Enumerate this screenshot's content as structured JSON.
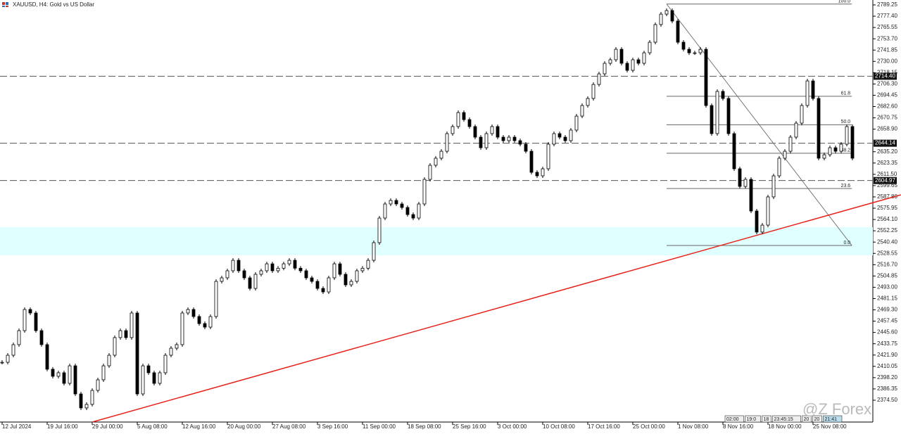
{
  "chart_data": {
    "type": "candlestick",
    "title": "XAUUSD, H4:  Gold vs US Dollar",
    "watermark": "@Z Forex",
    "timers": [
      "02:00",
      "19:0",
      "18",
      "23:45:15",
      "20",
      "20",
      "21:41"
    ],
    "categories": [
      "12 Jul 2024",
      null,
      null,
      null,
      null,
      null,
      null,
      null,
      "19 Jul 16:00",
      null,
      null,
      null,
      null,
      null,
      null,
      null,
      "29 Jul 00:00",
      null,
      null,
      null,
      null,
      null,
      null,
      null,
      "5 Aug 08:00",
      null,
      null,
      null,
      null,
      null,
      null,
      null,
      "12 Aug 16:00",
      null,
      null,
      null,
      null,
      null,
      null,
      null,
      "20 Aug 00:00",
      null,
      null,
      null,
      null,
      null,
      null,
      null,
      "27 Aug 08:00",
      null,
      null,
      null,
      null,
      null,
      null,
      null,
      "3 Sep 16:00",
      null,
      null,
      null,
      null,
      null,
      null,
      null,
      "11 Sep 00:00",
      null,
      null,
      null,
      null,
      null,
      null,
      null,
      "18 Sep 08:00",
      null,
      null,
      null,
      null,
      null,
      null,
      null,
      "25 Sep 16:00",
      null,
      null,
      null,
      null,
      null,
      null,
      null,
      "3 Oct 00:00",
      null,
      null,
      null,
      null,
      null,
      null,
      null,
      "10 Oct 08:00",
      null,
      null,
      null,
      null,
      null,
      null,
      null,
      "17 Oct 16:00",
      null,
      null,
      null,
      null,
      null,
      null,
      null,
      "25 Oct 00:00",
      null,
      null,
      null,
      null,
      null,
      null,
      null,
      "1 Nov 08:00",
      null,
      null,
      null,
      null,
      null,
      null,
      null,
      "8 Nov 16:00",
      null,
      null,
      null,
      null,
      null,
      null,
      null,
      "18 Nov 00:00",
      null,
      null,
      null,
      null,
      null,
      null,
      null,
      "25 Nov 08:00",
      null,
      null,
      null,
      null,
      null,
      null,
      null
    ],
    "close": [
      2414.3,
      2421.7,
      2432.8,
      2447.5,
      2469.7,
      2466.0,
      2447.5,
      2432.8,
      2407.0,
      2399.6,
      2403.3,
      2392.2,
      2410.6,
      2381.1,
      2366.4,
      2370.1,
      2384.8,
      2395.9,
      2410.6,
      2421.7,
      2440.2,
      2447.5,
      2440.2,
      2466.0,
      2381.1,
      2410.6,
      2403.3,
      2392.2,
      2403.3,
      2421.7,
      2429.1,
      2432.8,
      2466.0,
      2469.7,
      2462.3,
      2454.9,
      2451.2,
      2462.3,
      2499.2,
      2502.9,
      2510.3,
      2521.3,
      2510.3,
      2502.9,
      2491.8,
      2506.6,
      2510.3,
      2517.6,
      2510.3,
      2513.0,
      2517.6,
      2521.3,
      2513.0,
      2510.3,
      2502.9,
      2499.2,
      2491.8,
      2488.1,
      2502.9,
      2517.6,
      2506.6,
      2495.5,
      2499.2,
      2510.3,
      2513.0,
      2521.3,
      2539.8,
      2565.6,
      2580.4,
      2584.1,
      2580.4,
      2576.7,
      2569.3,
      2565.6,
      2580.4,
      2606.2,
      2621.0,
      2628.4,
      2635.7,
      2654.2,
      2661.6,
      2676.3,
      2668.9,
      2661.6,
      2650.5,
      2639.4,
      2654.2,
      2661.6,
      2650.5,
      2646.8,
      2650.5,
      2646.8,
      2643.1,
      2635.7,
      2613.6,
      2609.9,
      2617.3,
      2643.1,
      2654.2,
      2650.5,
      2646.8,
      2657.9,
      2672.6,
      2683.7,
      2691.1,
      2705.8,
      2716.9,
      2728.0,
      2731.7,
      2742.7,
      2728.0,
      2720.6,
      2731.7,
      2728.0,
      2739.0,
      2750.1,
      2768.6,
      2779.6,
      2783.3,
      2772.3,
      2750.1,
      2742.7,
      2739.0,
      2739.0,
      2742.7,
      2683.7,
      2654.2,
      2698.5,
      2691.1,
      2654.2,
      2617.3,
      2598.8,
      2606.2,
      2573.0,
      2550.9,
      2558.2,
      2587.8,
      2609.9,
      2628.4,
      2635.7,
      2650.5,
      2665.2,
      2683.7,
      2709.5,
      2691.1,
      2628.4,
      2632.0,
      2639.4,
      2635.7,
      2643.1,
      2661.6,
      2628.4
    ],
    "ylim": [
      2351.6,
      2794.4
    ],
    "yticks": [
      2789.25,
      {
        "value": 2777.4,
        "label": "2777.40"
      },
      2765.55,
      {
        "value": 2753.7,
        "label": "2753.70"
      },
      2741.85,
      {
        "value": 2730,
        "label": "2730.00"
      },
      2718.15,
      {
        "value": 2706.3,
        "label": "2706.30"
      },
      2694.45,
      {
        "value": 2682.6,
        "label": "2682.60"
      },
      2670.75,
      {
        "value": 2658.9,
        "label": "2658.90"
      },
      {
        "value": 2635.2,
        "label": "2635.20"
      },
      2623.35,
      {
        "value": 2611.5,
        "label": "2611.50"
      },
      2599.65,
      {
        "value": 2587.8,
        "label": "2587.80"
      },
      2575.95,
      {
        "value": 2564.1,
        "label": "2564.10"
      },
      2552.25,
      {
        "value": 2540.4,
        "label": "2540.40"
      },
      2528.55,
      {
        "value": 2516.7,
        "label": "2516.70"
      },
      2504.85,
      {
        "value": 2493,
        "label": "2493.00"
      },
      2481.15,
      {
        "value": 2469.3,
        "label": "2469.30"
      },
      2457.45,
      {
        "value": 2445.6,
        "label": "2445.60"
      },
      2433.75,
      {
        "value": 2421.9,
        "label": "2421.90"
      },
      2410.05,
      {
        "value": 2398.2,
        "label": "2398.20"
      },
      2386.35,
      {
        "value": 2374.5,
        "label": "2374.50"
      }
    ],
    "price_lines": [
      {
        "value": 2714.4,
        "label": "2714.40"
      },
      2644.14,
      {
        "value": 2604.97,
        "label": "2604.97"
      }
    ],
    "zone": [
      2526.5,
      2556.0
    ],
    "trendline": {
      "x": [
        16,
        159.6
      ],
      "values": [
        2351.6,
        2590.0
      ],
      "color": "#e8231c"
    },
    "fibonacci": {
      "x": [
        118,
        150.9
      ],
      "low": 2536.8,
      "high": 2790.2,
      "levels": [
        {
          "value": 100,
          "label": "100.0"
        },
        61.8,
        {
          "value": 50,
          "label": "50.0"
        },
        38.2,
        23.6,
        {
          "value": 0,
          "label": "0.0"
        }
      ]
    },
    "up_color": "#ffffff",
    "down_color": "#000000",
    "zone_color": "#e0ffff"
  }
}
